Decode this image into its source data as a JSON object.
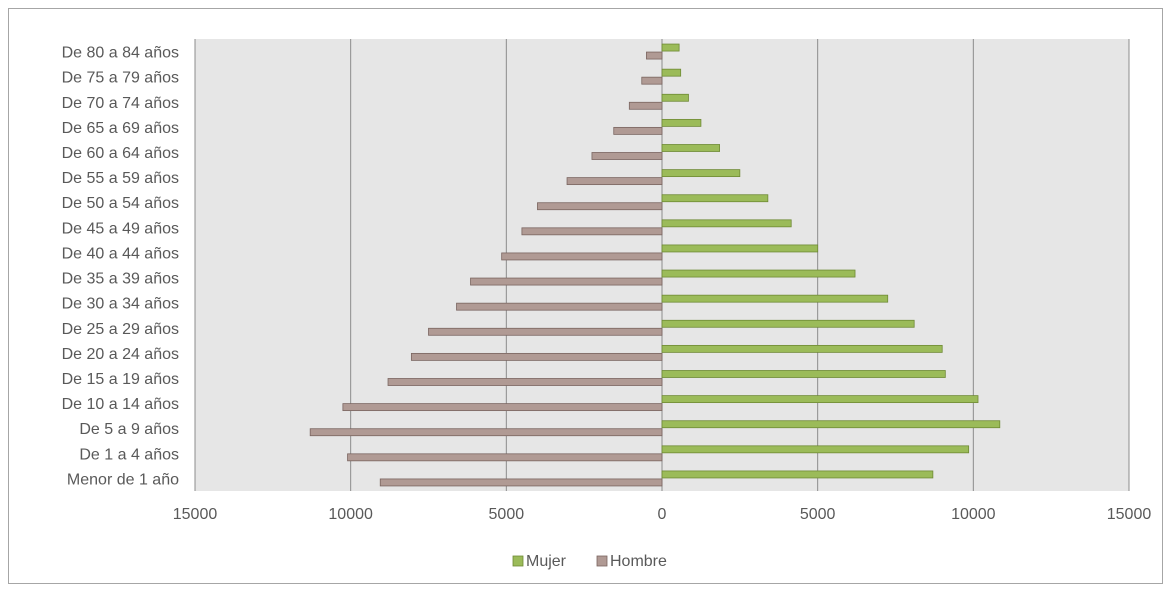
{
  "chart_data": {
    "type": "bar",
    "orientation": "horizontal",
    "title": "",
    "xlabel": "",
    "ylabel": "",
    "categories": [
      "Menor de 1 año",
      "De 1 a 4 años",
      "De 5 a 9 años",
      "De 10 a 14 años",
      "De 15 a 19 años",
      "De 20 a 24 años",
      "De 25 a 29 años",
      "De 30 a 34 años",
      "De 35 a 39 años",
      "De 40 a 44 años",
      "De 45 a 49 años",
      "De 50 a 54 años",
      "De 55 a 59 años",
      "De 60 a 64 años",
      "De 65 a 69 años",
      "De 70 a 74 años",
      "De 75 a 79 años",
      "De 80 a 84 años"
    ],
    "series": [
      {
        "name": "Mujer",
        "color": "#9bbb59",
        "values": [
          8700,
          9850,
          10850,
          10150,
          9100,
          9000,
          8100,
          7250,
          6200,
          5000,
          4150,
          3400,
          2500,
          1850,
          1250,
          850,
          600,
          550
        ]
      },
      {
        "name": "Hombre",
        "color": "#b09a94",
        "values": [
          9050,
          10100,
          11300,
          10250,
          8800,
          8050,
          7500,
          6600,
          6150,
          5150,
          4500,
          4000,
          3050,
          2250,
          1550,
          1050,
          650,
          500
        ]
      }
    ],
    "xlim": [
      -15000,
      15000
    ],
    "xticks": [
      -15000,
      -10000,
      -5000,
      0,
      5000,
      10000,
      15000
    ],
    "xtick_labels": [
      "15000",
      "10000",
      "5000",
      "0",
      "5000",
      "10000",
      "15000"
    ],
    "grid": true,
    "plot_background": "#e6e6e6",
    "legend_position": "bottom",
    "legend": [
      "Mujer",
      "Hombre"
    ]
  }
}
